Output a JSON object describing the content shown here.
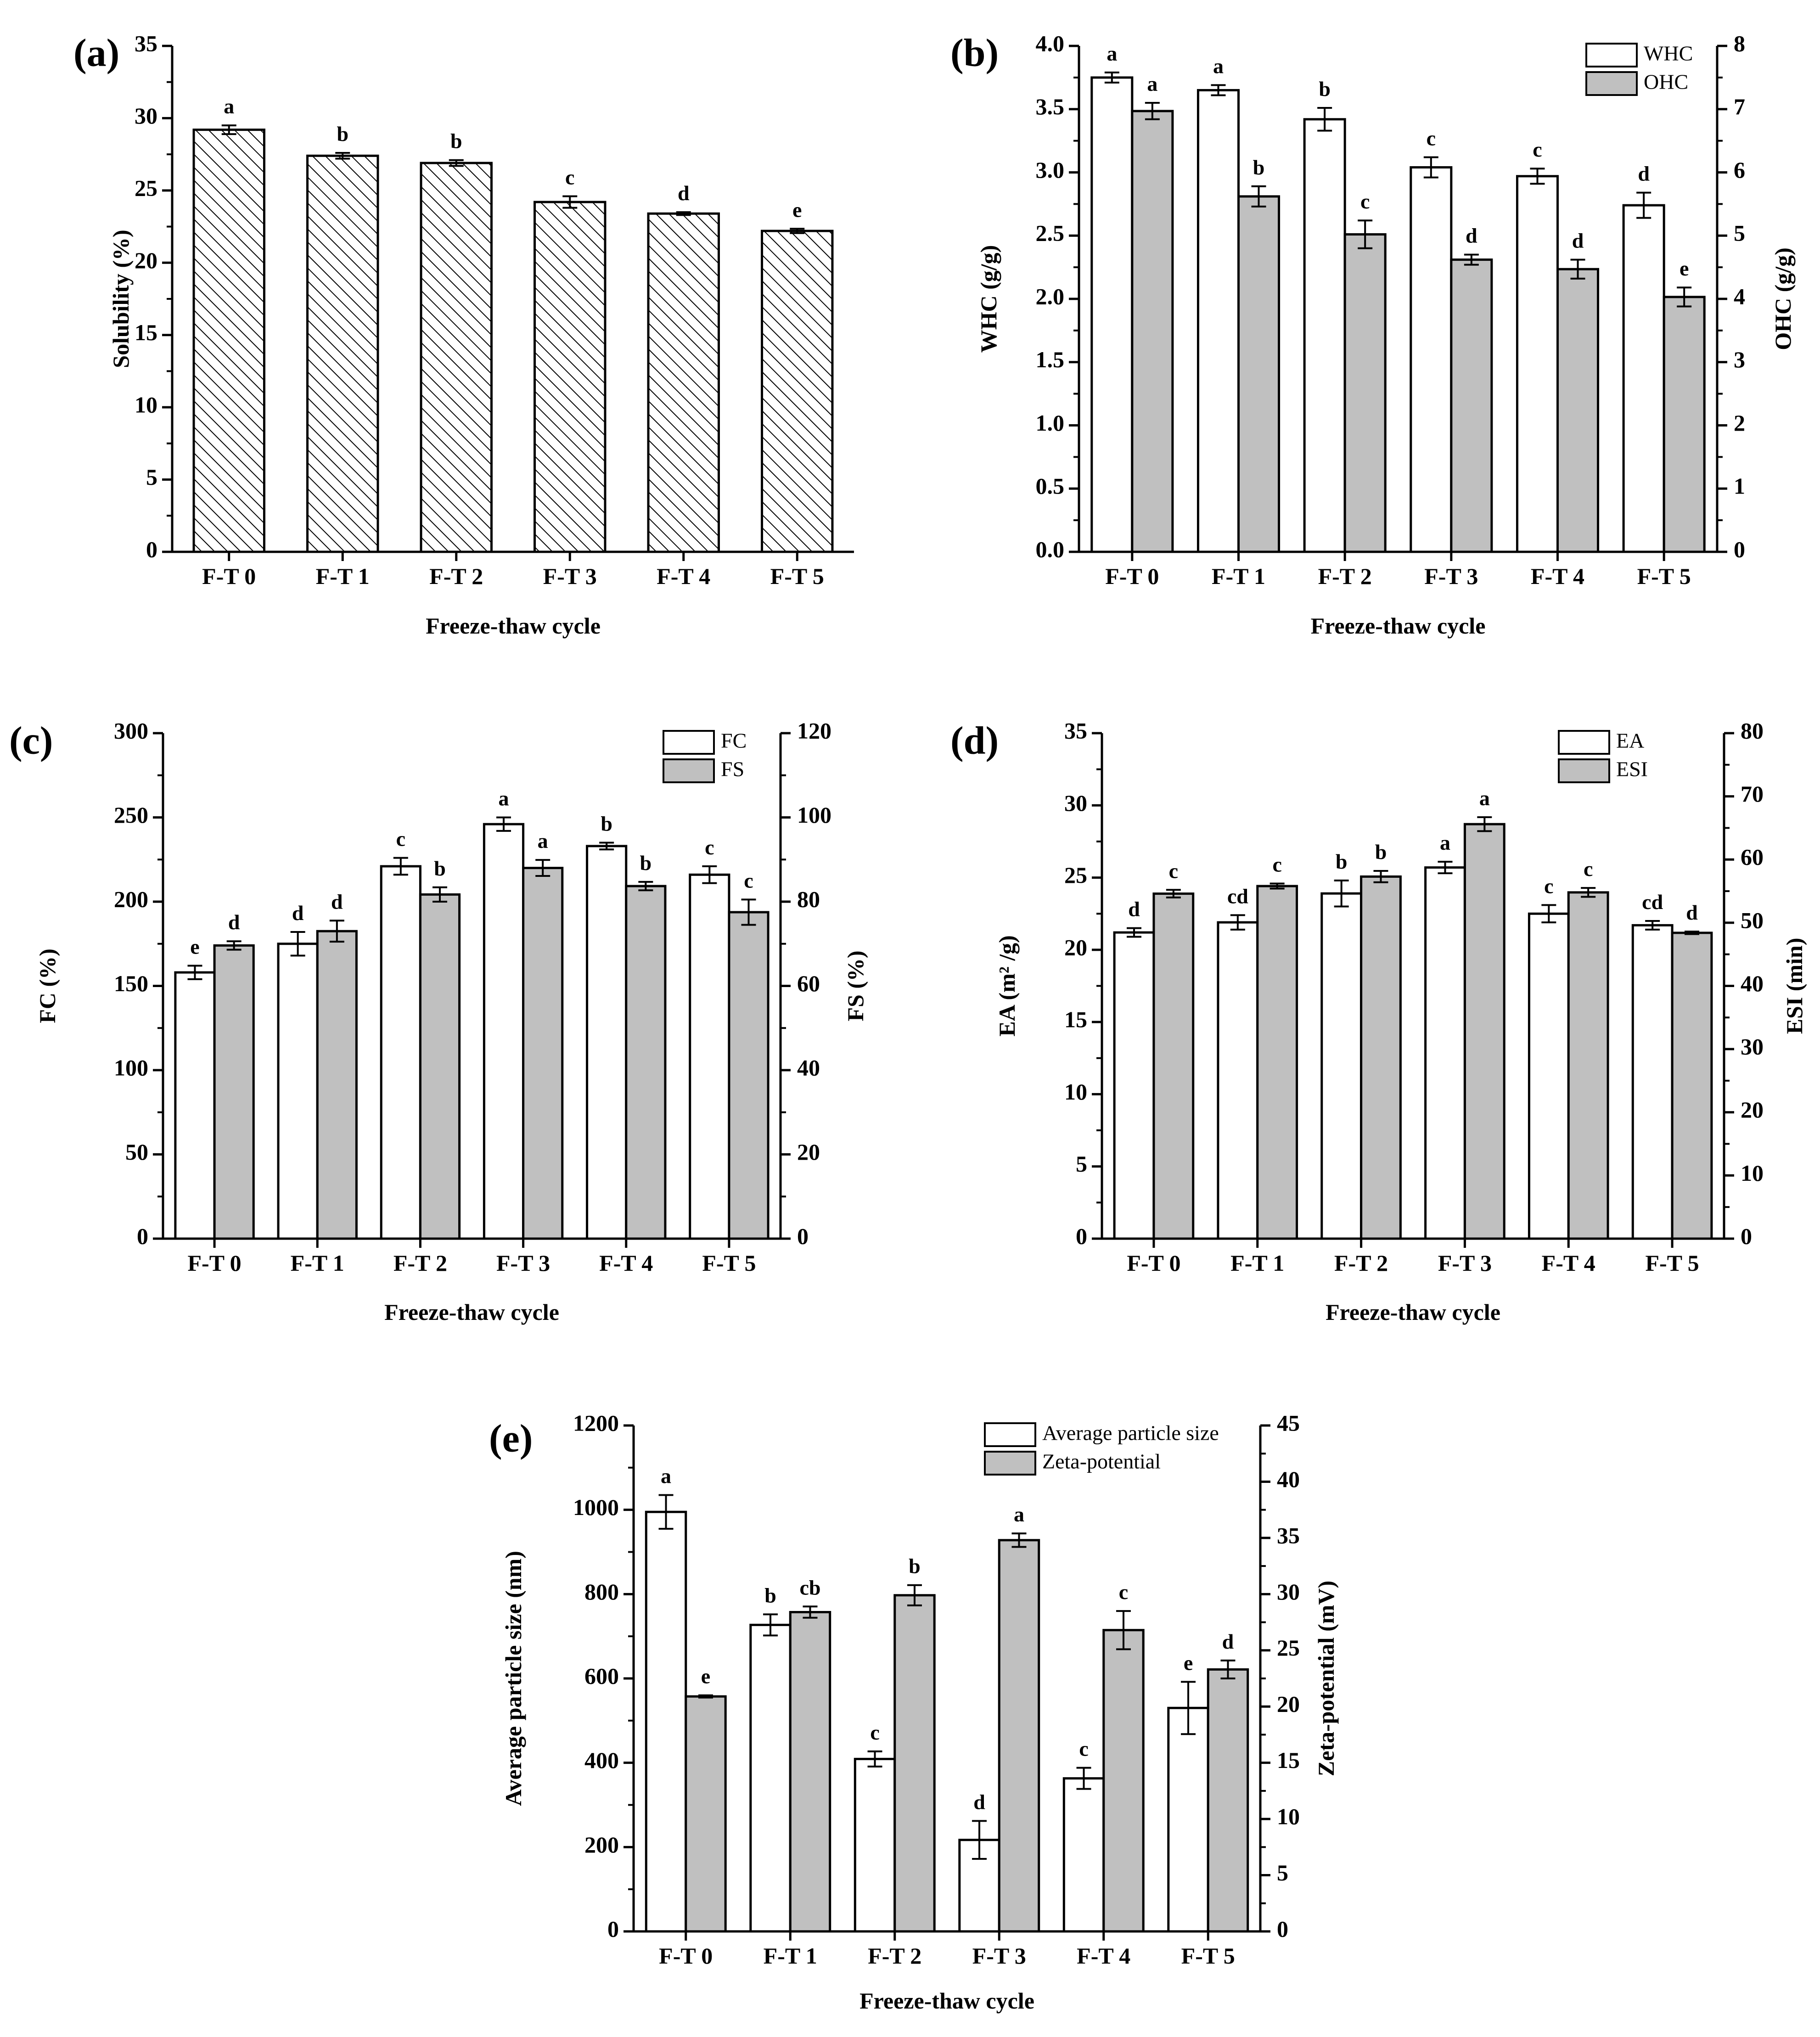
{
  "figure": {
    "colors": {
      "white_bar": "#ffffff",
      "gray_bar": "#c0c0c0",
      "axis": "#000000"
    },
    "hatch_pattern": "diagonal-hatch"
  },
  "chart_data": [
    {
      "id": "a",
      "label": "(a)",
      "type": "bar",
      "categories": [
        "F-T 0",
        "F-T 1",
        "F-T 2",
        "F-T 3",
        "F-T 4",
        "F-T 5"
      ],
      "xlabel": "Freeze-thaw cycle",
      "ylabel": "Solubility (%)",
      "ylim": [
        0,
        35
      ],
      "yticks": [
        0,
        5,
        10,
        15,
        20,
        25,
        30,
        35
      ],
      "series": [
        {
          "name": "Solubility",
          "axis": "left",
          "style": "hatched",
          "values": [
            29.2,
            27.4,
            26.9,
            24.2,
            23.4,
            22.2
          ],
          "errors": [
            0.3,
            0.2,
            0.2,
            0.4,
            0.1,
            0.15
          ],
          "letters": [
            "a",
            "b",
            "b",
            "c",
            "d",
            "e"
          ]
        }
      ]
    },
    {
      "id": "b",
      "label": "(b)",
      "type": "bar",
      "categories": [
        "F-T 0",
        "F-T 1",
        "F-T 2",
        "F-T 3",
        "F-T 4",
        "F-T 5"
      ],
      "xlabel": "Freeze-thaw cycle",
      "ylabel": "WHC (g/g)",
      "ylim": [
        0,
        4.0
      ],
      "yticks": [
        "0.0",
        "0.5",
        "1.0",
        "1.5",
        "2.0",
        "2.5",
        "3.0",
        "3.5",
        "4.0"
      ],
      "y2label": "OHC (g/g)",
      "y2lim": [
        0,
        8
      ],
      "y2ticks": [
        0,
        1,
        2,
        3,
        4,
        5,
        6,
        7,
        8
      ],
      "legend": [
        "WHC",
        "OHC"
      ],
      "series": [
        {
          "name": "WHC",
          "axis": "left",
          "style": "white",
          "values": [
            3.75,
            3.65,
            3.42,
            3.04,
            2.97,
            2.74
          ],
          "errors": [
            0.04,
            0.04,
            0.09,
            0.08,
            0.06,
            0.1
          ],
          "letters": [
            "a",
            "a",
            "b",
            "c",
            "c",
            "d"
          ]
        },
        {
          "name": "OHC",
          "axis": "right",
          "style": "gray",
          "values": [
            6.97,
            5.62,
            5.02,
            4.62,
            4.47,
            4.03
          ],
          "errors": [
            0.13,
            0.16,
            0.22,
            0.08,
            0.15,
            0.15
          ],
          "letters": [
            "a",
            "b",
            "c",
            "d",
            "d",
            "e"
          ]
        }
      ]
    },
    {
      "id": "c",
      "label": "(c)",
      "type": "bar",
      "categories": [
        "F-T 0",
        "F-T 1",
        "F-T 2",
        "F-T 3",
        "F-T 4",
        "F-T 5"
      ],
      "xlabel": "Freeze-thaw cycle",
      "ylabel": "FC (%)",
      "ylim": [
        0,
        300
      ],
      "yticks": [
        0,
        50,
        100,
        150,
        200,
        250,
        300
      ],
      "y2label": "FS (%)",
      "y2lim": [
        0,
        120
      ],
      "y2ticks": [
        0,
        20,
        40,
        60,
        80,
        100,
        120
      ],
      "legend": [
        "FC",
        "FS"
      ],
      "series": [
        {
          "name": "FC",
          "axis": "left",
          "style": "white",
          "values": [
            158,
            175,
            221,
            246,
            233,
            216
          ],
          "errors": [
            4,
            7,
            5,
            4,
            2,
            5
          ],
          "letters": [
            "e",
            "d",
            "c",
            "a",
            "b",
            "c"
          ]
        },
        {
          "name": "FS",
          "axis": "right",
          "style": "gray",
          "values": [
            69.6,
            73,
            81.7,
            88,
            83.7,
            77.5
          ],
          "errors": [
            1.0,
            2.5,
            1.7,
            1.9,
            1.0,
            3.0
          ],
          "letters": [
            "d",
            "d",
            "b",
            "a",
            "b",
            "c"
          ]
        }
      ]
    },
    {
      "id": "d",
      "label": "(d)",
      "type": "bar",
      "categories": [
        "F-T 0",
        "F-T 1",
        "F-T 2",
        "F-T 3",
        "F-T 4",
        "F-T 5"
      ],
      "xlabel": "Freeze-thaw cycle",
      "ylabel": "EA (m² /g)",
      "ylim": [
        0,
        35
      ],
      "yticks": [
        0,
        5,
        10,
        15,
        20,
        25,
        30,
        35
      ],
      "y2label": "ESI (min)",
      "y2lim": [
        0,
        80
      ],
      "y2ticks": [
        0,
        10,
        20,
        30,
        40,
        50,
        60,
        70,
        80
      ],
      "legend": [
        "EA",
        "ESI"
      ],
      "series": [
        {
          "name": "EA",
          "axis": "left",
          "style": "white",
          "values": [
            21.2,
            21.9,
            23.9,
            25.7,
            22.5,
            21.7
          ],
          "errors": [
            0.3,
            0.5,
            0.9,
            0.4,
            0.6,
            0.3
          ],
          "letters": [
            "d",
            "cd",
            "b",
            "a",
            "c",
            "cd"
          ]
        },
        {
          "name": "ESI",
          "axis": "right",
          "style": "gray",
          "values": [
            54.6,
            55.8,
            57.3,
            65.6,
            54.8,
            48.4
          ],
          "errors": [
            0.6,
            0.4,
            0.9,
            1.1,
            0.7,
            0.2
          ],
          "letters": [
            "c",
            "c",
            "b",
            "a",
            "c",
            "d"
          ]
        }
      ]
    },
    {
      "id": "e",
      "label": "(e)",
      "type": "bar",
      "categories": [
        "F-T 0",
        "F-T 1",
        "F-T 2",
        "F-T 3",
        "F-T 4",
        "F-T 5"
      ],
      "xlabel": "Freeze-thaw cycle",
      "ylabel": "Average particle size (nm)",
      "ylim": [
        0,
        1200
      ],
      "yticks": [
        0,
        200,
        400,
        600,
        800,
        1000,
        1200
      ],
      "y2label": "Zeta-potential (mV)",
      "y2lim": [
        0,
        45
      ],
      "y2ticks": [
        0,
        5,
        10,
        15,
        20,
        25,
        30,
        35,
        40,
        45
      ],
      "legend": [
        "Average particle size",
        "Zeta-potential"
      ],
      "series": [
        {
          "name": "Average particle size",
          "axis": "left",
          "style": "white",
          "values": [
            995,
            727,
            409,
            217,
            363,
            530
          ],
          "errors": [
            40,
            25,
            18,
            45,
            25,
            62
          ],
          "letters": [
            "a",
            "b",
            "c",
            "d",
            "c",
            "e"
          ]
        },
        {
          "name": "Zeta-potential",
          "axis": "right",
          "style": "gray",
          "values": [
            20.9,
            28.4,
            29.9,
            34.8,
            26.8,
            23.3
          ],
          "errors": [
            0.1,
            0.5,
            0.9,
            0.6,
            1.7,
            0.8
          ],
          "letters": [
            "e",
            "cb",
            "b",
            "a",
            "c",
            "d"
          ]
        }
      ]
    }
  ]
}
